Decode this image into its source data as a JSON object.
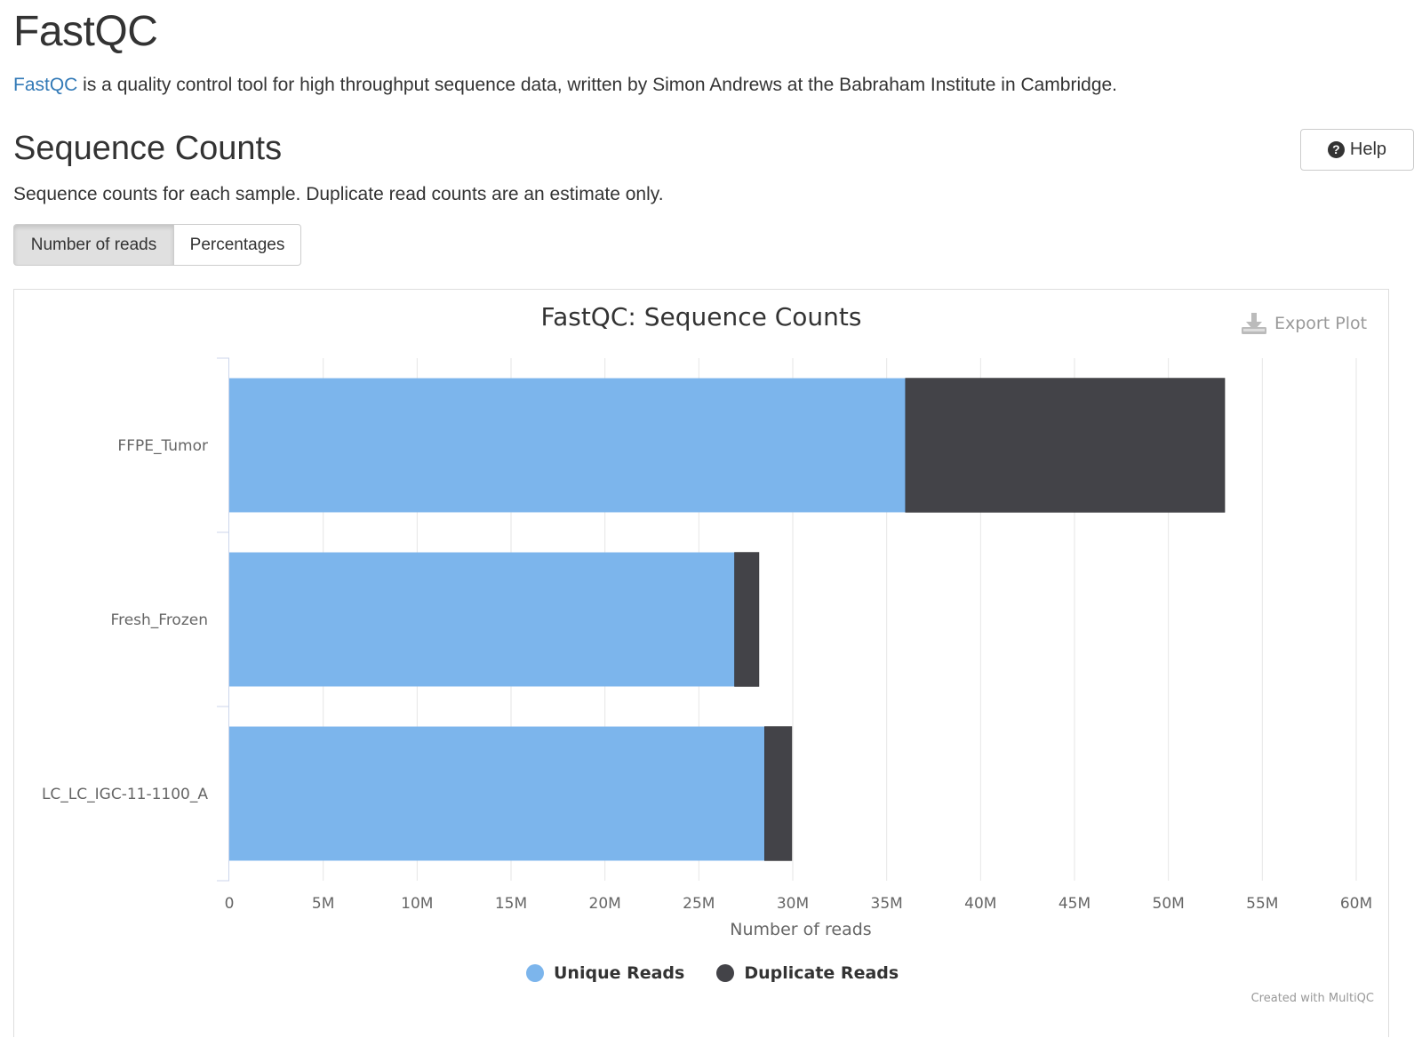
{
  "header": {
    "title": "FastQC",
    "intro_link": "FastQC",
    "intro_text": " is a quality control tool for high throughput sequence data, written by Simon Andrews at the Babraham Institute in Cambridge."
  },
  "section": {
    "title": "Sequence Counts",
    "description": "Sequence counts for each sample. Duplicate read counts are an estimate only.",
    "help_label": "Help",
    "help_icon": "question-circle-icon",
    "toggles": [
      {
        "label": "Number of reads",
        "active": true
      },
      {
        "label": "Percentages",
        "active": false
      }
    ]
  },
  "plot": {
    "export_label": "Export Plot",
    "export_icon": "download-icon",
    "credit": "Created with MultiQC"
  },
  "chart_data": {
    "type": "bar",
    "orientation": "horizontal",
    "stacked": true,
    "title": "FastQC: Sequence Counts",
    "xlabel": "Number of reads",
    "ylabel": "",
    "categories": [
      "FFPE_Tumor",
      "Fresh_Frozen",
      "LC_LC_IGC-11-1100_A"
    ],
    "series": [
      {
        "name": "Unique Reads",
        "color": "#7cb5ec",
        "values": [
          36000000,
          26900000,
          28500000
        ]
      },
      {
        "name": "Duplicate Reads",
        "color": "#434348",
        "values": [
          17000000,
          1300000,
          1450000
        ]
      }
    ],
    "xlim": [
      0,
      60000000
    ],
    "xticks": [
      0,
      5000000,
      10000000,
      15000000,
      20000000,
      25000000,
      30000000,
      35000000,
      40000000,
      45000000,
      50000000,
      55000000,
      60000000
    ],
    "xtick_labels": [
      "0",
      "5M",
      "10M",
      "15M",
      "20M",
      "25M",
      "30M",
      "35M",
      "40M",
      "45M",
      "50M",
      "55M",
      "60M"
    ],
    "grid": true,
    "legend_position": "bottom-center"
  }
}
